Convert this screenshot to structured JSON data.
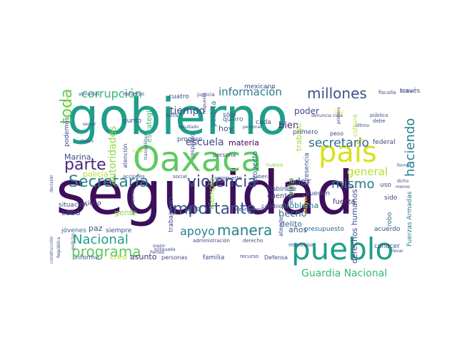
{
  "word_cloud": {
    "words": [
      {
        "text": "seguridad",
        "color": "#3d0f5a"
      },
      {
        "text": "gobierno",
        "color": "#1f9e89"
      },
      {
        "text": "Oaxaca",
        "color": "#5ec962"
      },
      {
        "text": "país",
        "color": "#d8e219"
      },
      {
        "text": "pueblo",
        "color": "#1f9e89"
      },
      {
        "text": "importante",
        "color": "#3b528b"
      },
      {
        "text": "Secretaría",
        "color": "#26828e"
      },
      {
        "text": "violencia",
        "color": "#3e4a89"
      },
      {
        "text": "parte",
        "color": "#482878"
      },
      {
        "text": "millones",
        "color": "#3b528b"
      },
      {
        "text": "información",
        "color": "#2a788e"
      },
      {
        "text": "corrupción",
        "color": "#35b779"
      },
      {
        "text": "toda",
        "color": "#5ec962"
      },
      {
        "text": "haciendo",
        "color": "#26828e"
      },
      {
        "text": "mismo",
        "color": "#2a788e"
      },
      {
        "text": "programa",
        "color": "#5ec962"
      },
      {
        "text": "manera",
        "color": "#26828e"
      },
      {
        "text": "Nacional",
        "color": "#1f9e89"
      },
      {
        "text": "escuela",
        "color": "#3e4a89"
      },
      {
        "text": "secretario",
        "color": "#31688e"
      },
      {
        "text": "Guardia Nacional",
        "color": "#35b779"
      },
      {
        "text": "apoyo",
        "color": "#26828e"
      },
      {
        "text": "general",
        "color": "#b5de2b"
      },
      {
        "text": "tiempo",
        "color": "#3e4a89"
      },
      {
        "text": "autoridades",
        "color": "#90d743"
      },
      {
        "text": "bien",
        "color": "#482878"
      },
      {
        "text": "hecho",
        "color": "#31688e"
      },
      {
        "text": "dar",
        "color": "#3b528b"
      },
      {
        "text": "poder",
        "color": "#3e4a89"
      },
      {
        "text": "materia",
        "color": "#440154"
      },
      {
        "text": "hoy",
        "color": "#3b528b"
      },
      {
        "text": "delito",
        "color": "#31688e"
      },
      {
        "text": "problema",
        "color": "#2a788e"
      },
      {
        "text": "años",
        "color": "#3b528b"
      },
      {
        "text": "cuenta",
        "color": "#3e4a89"
      },
      {
        "text": "vida",
        "color": "#90d743"
      },
      {
        "text": "policía",
        "color": "#b5de2b"
      },
      {
        "text": "Marina",
        "color": "#3e4a89"
      },
      {
        "text": "estrategia",
        "color": "#35b779"
      },
      {
        "text": "política",
        "color": "#2a788e"
      },
      {
        "text": "ejemplo",
        "color": "#90d743"
      },
      {
        "text": "trabajo",
        "color": "#a0da39"
      },
      {
        "text": "quiero",
        "color": "#31688e"
      },
      {
        "text": "proyecto",
        "color": "#31688e"
      },
      {
        "text": "Gabinete",
        "color": "#3e4a89"
      },
      {
        "text": "cinco",
        "color": "#482878"
      },
      {
        "text": "cabo",
        "color": "#3e4a89"
      },
      {
        "text": "paz",
        "color": "#3b528b"
      },
      {
        "text": "gente",
        "color": "#90d743"
      },
      {
        "text": "fuerza",
        "color": "#482878"
      },
      {
        "text": "robo",
        "color": "#31688e"
      },
      {
        "text": "acuerdo",
        "color": "#3e4a89"
      },
      {
        "text": "presupuesto",
        "color": "#31688e"
      },
      {
        "text": "derechos humanos",
        "color": "#3e4a89"
      },
      {
        "text": "Fuerzas Armadas",
        "color": "#2a788e"
      },
      {
        "text": "asunto",
        "color": "#482878"
      },
      {
        "text": "creo",
        "color": "#b5de2b"
      },
      {
        "text": "informe",
        "color": "#3b528b"
      },
      {
        "text": "Defensa",
        "color": "#3e4a89"
      },
      {
        "text": "familia",
        "color": "#3e4a89"
      },
      {
        "text": "jóvenes",
        "color": "#31688e"
      },
      {
        "text": "situación",
        "color": "#3e4a89"
      },
      {
        "text": "siempre",
        "color": "#3e4a89"
      },
      {
        "text": "sino",
        "color": "#3b528b"
      },
      {
        "text": "trabajando",
        "color": "#3e4a89"
      },
      {
        "text": "proceso",
        "color": "#3e4a89"
      },
      {
        "text": "punto",
        "color": "#3e4a89"
      },
      {
        "text": "seis",
        "color": "#3e4a89"
      },
      {
        "text": "cuatro",
        "color": "#3e4a89"
      },
      {
        "text": "cada",
        "color": "#3e4a89"
      },
      {
        "text": "primero",
        "color": "#3e4a89"
      },
      {
        "text": "sólo",
        "color": "#3e4a89"
      },
      {
        "text": "federal",
        "color": "#3e4a89"
      },
      {
        "text": "conocer",
        "color": "#3e4a89"
      },
      {
        "text": "pueden",
        "color": "#3e4a89"
      },
      {
        "text": "presencia",
        "color": "#3e4a89"
      },
      {
        "text": "mexicano",
        "color": "#3e4a89"
      },
      {
        "text": "respecto",
        "color": "#3e4a89"
      },
      {
        "text": "persona",
        "color": "#3e4a89"
      },
      {
        "text": "atención",
        "color": "#3e4a89"
      },
      {
        "text": "podemos",
        "color": "#3e4a89"
      },
      {
        "text": "uso",
        "color": "#3e4a89"
      },
      {
        "text": "sido",
        "color": "#3e4a89"
      },
      {
        "text": "cambio",
        "color": "#3e4a89"
      },
      {
        "text": "ley",
        "color": "#fde725"
      },
      {
        "text": "peso",
        "color": "#3e4a89"
      },
      {
        "text": "cultura",
        "color": "#b5de2b"
      },
      {
        "text": "través",
        "color": "#3e4a89"
      },
      {
        "text": "justicia",
        "color": "#3e4a89"
      },
      {
        "text": "fiscalía",
        "color": "#3e4a89"
      },
      {
        "text": "nunca",
        "color": "#3e4a89"
      },
      {
        "text": "pública",
        "color": "#3e4a89"
      },
      {
        "text": "debe",
        "color": "#3e4a89"
      },
      {
        "text": "esfuerzo",
        "color": "#3e4a89"
      },
      {
        "text": "alimentos",
        "color": "#3e4a89"
      },
      {
        "text": "nuevo",
        "color": "#90d743"
      },
      {
        "text": "mayor",
        "color": "#fde725"
      },
      {
        "text": "estatales",
        "color": "#3e4a89"
      },
      {
        "text": "atender",
        "color": "#3e4a89"
      },
      {
        "text": "delincuencia",
        "color": "#3e4a89"
      },
      {
        "text": "acciones",
        "color": "#3e4a89"
      },
      {
        "text": "social",
        "color": "#3e4a89"
      },
      {
        "text": "aeropuerto",
        "color": "#3e4a89"
      },
      {
        "text": "saben",
        "color": "#3e4a89"
      },
      {
        "text": "municipio",
        "color": "#3e4a89"
      },
      {
        "text": "administración",
        "color": "#3e4a89"
      },
      {
        "text": "derecho",
        "color": "#3e4a89"
      },
      {
        "text": "recurso",
        "color": "#3e4a89"
      },
      {
        "text": "personas",
        "color": "#3e4a89"
      },
      {
        "text": "mejor",
        "color": "#3e4a89"
      },
      {
        "text": "búsqueda",
        "color": "#3e4a89"
      },
      {
        "text": "Pemex",
        "color": "#3e4a89"
      },
      {
        "text": "República",
        "color": "#3e4a89"
      },
      {
        "text": "construcción",
        "color": "#3e4a89"
      },
      {
        "text": "decisión",
        "color": "#3e4a89"
      },
      {
        "text": "dinero",
        "color": "#3e4a89"
      },
      {
        "text": "seguir",
        "color": "#3e4a89"
      },
      {
        "text": "investigación",
        "color": "#b5de2b"
      },
      {
        "text": "resultado",
        "color": "#3e4a89"
      },
      {
        "text": "respuesta",
        "color": "#3e4a89"
      },
      {
        "text": "personal",
        "color": "#3e4a89"
      },
      {
        "text": "último",
        "color": "#3e4a89"
      },
      {
        "text": "cosa",
        "color": "#3e4a89"
      },
      {
        "text": "denuncia",
        "color": "#3e4a89"
      },
      {
        "text": "llevar",
        "color": "#3e4a89"
      },
      {
        "text": "forma",
        "color": "#3e4a89"
      },
      {
        "text": "dicho",
        "color": "#3e4a89"
      },
      {
        "text": "menos",
        "color": "#3e4a89"
      },
      {
        "text": "lugar",
        "color": "#b5de2b"
      },
      {
        "text": "tranquilidad",
        "color": "#3e4a89"
      },
      {
        "text": "organización",
        "color": "#3e4a89"
      },
      {
        "text": "caso",
        "color": "#3e4a89"
      },
      {
        "text": "policías",
        "color": "#3e4a89"
      },
      {
        "text": "primera",
        "color": "#3e4a89"
      }
    ]
  }
}
